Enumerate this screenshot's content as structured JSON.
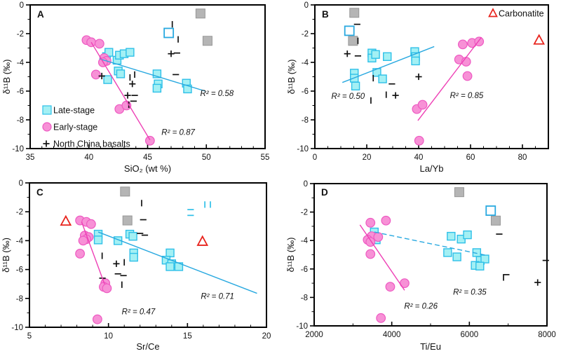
{
  "figure": {
    "background": "#ffffff"
  },
  "colors": {
    "late_stage_fill": "#a3f0f4",
    "late_stage_stroke": "#2fc0e8",
    "cyan_line": "#29a9e0",
    "early_stage_fill": "#f791d6",
    "early_stage_stroke": "#ee59c2",
    "magenta_line": "#ee3fb5",
    "black": "#111111",
    "gray_fill": "#b5b5b5",
    "gray_stroke": "#979797",
    "red": "#e8231c",
    "axis": "#000000"
  },
  "legend_a": {
    "items": [
      {
        "marker": "late-stage-square",
        "label": "Late-stage"
      },
      {
        "marker": "early-stage-circle",
        "label": "Early-stage"
      },
      {
        "marker": "plus",
        "label": "North China basalts"
      }
    ]
  },
  "legend_b": {
    "items": [
      {
        "marker": "carbonatite-triangle",
        "label": "Carbonatite"
      }
    ]
  },
  "chart_data": [
    {
      "panel_label": "A",
      "type": "scatter",
      "xlabel": "SiO₂ (wt %)",
      "ylabel": "δ¹¹B (‰)",
      "xlim": [
        35,
        55
      ],
      "xticks": [
        35,
        40,
        45,
        50,
        55
      ],
      "xtick_labels": [
        "35",
        "40",
        "45",
        "50",
        "55"
      ],
      "x_minor_step": 1,
      "ylim": [
        -10,
        0
      ],
      "yticks": [
        0,
        -2,
        -4,
        -6,
        -8,
        -10
      ],
      "ytick_labels": [
        "0",
        "-2",
        "-4",
        "-6",
        "-8",
        "-10"
      ],
      "y_minor_step": 1,
      "series": {
        "late_stage": [
          [
            41.5,
            -3.6
          ],
          [
            41.7,
            -3.3
          ],
          [
            42.4,
            -3.85
          ],
          [
            42.6,
            -3.5
          ],
          [
            43.0,
            -3.4
          ],
          [
            43.5,
            -3.3
          ],
          [
            42.5,
            -4.6
          ],
          [
            42.7,
            -4.8
          ],
          [
            41.6,
            -5.2
          ],
          [
            45.8,
            -4.8
          ],
          [
            45.9,
            -5.5
          ],
          [
            45.8,
            -5.8
          ],
          [
            48.3,
            -5.45
          ],
          [
            48.4,
            -5.85
          ]
        ],
        "late_stage_open": [
          [
            46.8,
            -1.95
          ]
        ],
        "early_stage": [
          [
            39.8,
            -2.45
          ],
          [
            40.2,
            -2.6
          ],
          [
            40.9,
            -2.7
          ],
          [
            41.3,
            -3.7
          ],
          [
            41.5,
            -3.9
          ],
          [
            41.2,
            -4.0
          ],
          [
            40.6,
            -4.85
          ],
          [
            42.6,
            -7.25
          ],
          [
            43.2,
            -7.0
          ],
          [
            45.2,
            -9.45
          ]
        ],
        "north_china_basalts": [
          [
            47.1,
            -1.35,
            "vbar"
          ],
          [
            47.6,
            -2.4,
            "vbar"
          ],
          [
            47.0,
            -3.4,
            "plus"
          ],
          [
            47.5,
            -3.35,
            "hbar"
          ],
          [
            41.1,
            -4.95,
            "plus"
          ],
          [
            43.5,
            -5.05,
            "vbar"
          ],
          [
            43.9,
            -4.85,
            "vbar"
          ],
          [
            43.7,
            -5.5,
            "plus"
          ],
          [
            43.3,
            -6.3,
            "plus"
          ],
          [
            43.9,
            -6.3,
            "hbar"
          ],
          [
            43.8,
            -6.7,
            "hbar"
          ],
          [
            43.4,
            -6.95,
            "vbar"
          ],
          [
            47.4,
            -4.85,
            "hbar"
          ]
        ],
        "gray_squares": [
          [
            49.5,
            -0.6
          ],
          [
            50.1,
            -2.5
          ]
        ],
        "carbonatite": []
      },
      "trendlines": [
        {
          "series": "late_stage",
          "color": "cyan",
          "x1": 40.9,
          "y1": -3.75,
          "x2": 49.9,
          "y2": -6.0,
          "dashed": false,
          "r2_label": "R² = 0.58",
          "label_x": 50.9,
          "label_y": -6.15
        },
        {
          "series": "early_stage",
          "color": "magenta",
          "x1": 40.2,
          "y1": -2.6,
          "x2": 45.2,
          "y2": -9.4,
          "dashed": false,
          "r2_label": "R² = 0.87",
          "label_x": 47.6,
          "label_y": -8.85
        }
      ]
    },
    {
      "panel_label": "B",
      "type": "scatter",
      "xlabel": "La/Yb",
      "ylabel": "δ¹¹B (‰)",
      "xlim": [
        0,
        90
      ],
      "xticks": [
        0,
        20,
        40,
        60,
        80
      ],
      "xtick_labels": [
        "0",
        "20",
        "40",
        "60",
        "80"
      ],
      "x_minor_step": 5,
      "ylim": [
        -10,
        0
      ],
      "yticks": [
        0,
        -2,
        -4,
        -6,
        -8,
        -10
      ],
      "ytick_labels": [
        "0",
        "-2",
        "-4",
        "-6",
        "-8",
        "-10"
      ],
      "y_minor_step": 1,
      "series": {
        "late_stage": [
          [
            22.0,
            -3.35
          ],
          [
            22.0,
            -3.7
          ],
          [
            23.4,
            -3.45
          ],
          [
            27.9,
            -3.6
          ],
          [
            15.2,
            -4.75
          ],
          [
            15.2,
            -5.1
          ],
          [
            15.7,
            -5.65
          ],
          [
            23.9,
            -4.7
          ],
          [
            26.1,
            -5.15
          ],
          [
            38.5,
            -3.25
          ],
          [
            38.8,
            -3.6
          ],
          [
            38.8,
            -3.9
          ]
        ],
        "late_stage_open": [
          [
            13.3,
            -1.8
          ]
        ],
        "early_stage": [
          [
            57.0,
            -2.75
          ],
          [
            60.6,
            -2.65
          ],
          [
            63.3,
            -2.55
          ],
          [
            55.6,
            -3.8
          ],
          [
            58.3,
            -3.95
          ],
          [
            58.8,
            -4.95
          ],
          [
            39.3,
            -7.25
          ],
          [
            41.5,
            -6.95
          ],
          [
            40.2,
            -9.45
          ]
        ],
        "north_china_basalts": [
          [
            16.3,
            -1.35,
            "hbar"
          ],
          [
            12.5,
            -3.4,
            "plus"
          ],
          [
            16.6,
            -2.5,
            "vbar"
          ],
          [
            16.6,
            -3.55,
            "hbar"
          ],
          [
            22.5,
            -5.1,
            "vbar"
          ],
          [
            29.7,
            -5.5,
            "hbar"
          ],
          [
            40.0,
            -5.0,
            "plus"
          ],
          [
            31.1,
            -6.3,
            "plus"
          ],
          [
            27.5,
            -6.25,
            "vbar"
          ],
          [
            21.6,
            -6.65,
            "vbar"
          ]
        ],
        "gray_squares": [
          [
            15.2,
            -0.55
          ],
          [
            14.7,
            -2.5
          ]
        ],
        "carbonatite": [
          [
            86.4,
            -2.45
          ]
        ]
      },
      "trendlines": [
        {
          "series": "late_stage",
          "color": "cyan",
          "x1": 10.6,
          "y1": -5.4,
          "x2": 46.0,
          "y2": -2.9,
          "dashed": false,
          "r2_label": "R² = 0.50",
          "label_x": 12.8,
          "label_y": -6.35
        },
        {
          "series": "early_stage",
          "color": "magenta",
          "x1": 39.7,
          "y1": -8.05,
          "x2": 64.2,
          "y2": -2.25,
          "dashed": false,
          "r2_label": "R² = 0.85",
          "label_x": 58.5,
          "label_y": -6.3
        }
      ]
    },
    {
      "panel_label": "C",
      "type": "scatter",
      "xlabel": "Sr/Ce",
      "ylabel": "δ¹¹B (‰)",
      "xlim": [
        5,
        20
      ],
      "xticks": [
        5,
        10,
        15,
        20
      ],
      "xtick_labels": [
        "5",
        "10",
        "15",
        "20"
      ],
      "x_minor_step": 1,
      "ylim": [
        -10,
        0
      ],
      "yticks": [
        0,
        -2,
        -4,
        -6,
        -8,
        -10
      ],
      "ytick_labels": [
        "0",
        "-2",
        "-4",
        "-6",
        "-8",
        "-10"
      ],
      "y_minor_step": 1,
      "series": {
        "late_stage": [
          [
            9.35,
            -3.55
          ],
          [
            9.35,
            -3.95
          ],
          [
            10.6,
            -4.0
          ],
          [
            11.35,
            -3.55
          ],
          [
            11.55,
            -3.7
          ],
          [
            11.6,
            -4.85
          ],
          [
            11.6,
            -5.15
          ],
          [
            13.9,
            -4.85
          ],
          [
            13.65,
            -5.35
          ],
          [
            14.0,
            -5.6
          ],
          [
            13.9,
            -5.8
          ],
          [
            14.45,
            -5.8
          ]
        ],
        "late_stage_open": [],
        "late_stage_ticks": [
          [
            15.2,
            -1.85,
            "hbar"
          ],
          [
            15.2,
            -2.25,
            "hbar"
          ],
          [
            16.1,
            -1.5,
            "vbar"
          ],
          [
            16.45,
            -1.5,
            "vbar"
          ]
        ],
        "early_stage": [
          [
            8.2,
            -2.6
          ],
          [
            8.6,
            -2.7
          ],
          [
            8.9,
            -2.85
          ],
          [
            8.5,
            -3.65
          ],
          [
            8.75,
            -3.75
          ],
          [
            8.6,
            -3.9
          ],
          [
            8.4,
            -4.0
          ],
          [
            8.2,
            -4.9
          ],
          [
            9.8,
            -6.95
          ],
          [
            9.7,
            -7.2
          ],
          [
            9.9,
            -7.3
          ],
          [
            9.3,
            -9.45
          ]
        ],
        "north_china_basalts": [
          [
            12.1,
            -1.4,
            "vbar"
          ],
          [
            12.2,
            -2.55,
            "hbar"
          ],
          [
            12.0,
            -3.5,
            "hbar"
          ],
          [
            12.3,
            -3.62,
            "hbar"
          ],
          [
            9.6,
            -5.05,
            "vbar"
          ],
          [
            10.5,
            -5.6,
            "plus"
          ],
          [
            11.0,
            -5.5,
            "vbar"
          ],
          [
            10.6,
            -6.3,
            "hbar"
          ],
          [
            10.95,
            -6.42,
            "hbar"
          ],
          [
            10.85,
            -7.05,
            "vbar"
          ],
          [
            9.62,
            -6.6,
            "hbar"
          ]
        ],
        "gray_squares": [
          [
            11.05,
            -0.6
          ],
          [
            11.2,
            -2.6
          ]
        ],
        "carbonatite": [
          [
            7.3,
            -2.65
          ],
          [
            15.95,
            -4.05
          ]
        ]
      },
      "trendlines": [
        {
          "series": "early_stage",
          "color": "magenta",
          "x1": 8.3,
          "y1": -2.7,
          "x2": 9.75,
          "y2": -7.0,
          "dashed": false,
          "r2_label": "R² = 0.47",
          "label_x": 11.9,
          "label_y": -8.9
        },
        {
          "series": "late_stage",
          "color": "cyan",
          "x1": 9.35,
          "y1": -3.4,
          "x2": 19.4,
          "y2": -7.65,
          "dashed": false,
          "r2_label": "R² = 0.71",
          "label_x": 16.9,
          "label_y": -7.85
        }
      ]
    },
    {
      "panel_label": "D",
      "type": "scatter",
      "xlabel": "Ti/Eu",
      "ylabel": "δ¹¹B (‰)",
      "xlim": [
        2000,
        8000
      ],
      "xticks": [
        2000,
        4000,
        6000,
        8000
      ],
      "xtick_labels": [
        "2000",
        "4000",
        "6000",
        "8000"
      ],
      "x_minor_step": 1000,
      "ylim": [
        -10,
        0
      ],
      "yticks": [
        0,
        -2,
        -4,
        -6,
        -8,
        -10
      ],
      "ytick_labels": [
        "0",
        "-2",
        "-4",
        "-6",
        "-8",
        "-10"
      ],
      "y_minor_step": 1,
      "series": {
        "late_stage": [
          [
            3550,
            -3.4
          ],
          [
            3600,
            -3.95
          ],
          [
            5530,
            -3.7
          ],
          [
            5790,
            -3.9
          ],
          [
            5950,
            -3.6
          ],
          [
            5440,
            -4.85
          ],
          [
            5680,
            -5.15
          ],
          [
            6190,
            -4.85
          ],
          [
            6280,
            -5.4
          ],
          [
            6400,
            -5.3
          ],
          [
            6150,
            -5.75
          ],
          [
            6270,
            -5.8
          ]
        ],
        "late_stage_open": [
          [
            6550,
            -1.9
          ]
        ],
        "early_stage": [
          [
            3450,
            -2.75
          ],
          [
            3850,
            -2.6
          ],
          [
            3480,
            -3.7
          ],
          [
            3650,
            -3.75
          ],
          [
            3380,
            -3.95
          ],
          [
            3450,
            -4.1
          ],
          [
            3450,
            -4.95
          ],
          [
            3960,
            -7.25
          ],
          [
            4330,
            -7.0
          ],
          [
            3720,
            -9.45
          ]
        ],
        "north_china_basalts": [
          [
            6770,
            -3.55,
            "hbar"
          ],
          [
            7970,
            -5.4,
            "hbar"
          ],
          [
            6950,
            -6.4,
            "hbar"
          ],
          [
            6880,
            -6.6,
            "vbar"
          ],
          [
            7760,
            -6.95,
            "plus"
          ]
        ],
        "gray_squares": [
          [
            5740,
            -0.6
          ],
          [
            6680,
            -2.6
          ]
        ],
        "carbonatite": []
      },
      "trendlines": [
        {
          "series": "early_stage",
          "color": "magenta",
          "x1": 3180,
          "y1": -2.9,
          "x2": 4330,
          "y2": -7.5,
          "dashed": false,
          "r2_label": "R² = 0.26",
          "label_x": 4750,
          "label_y": -8.6
        },
        {
          "series": "late_stage",
          "color": "cyan",
          "x1": 3550,
          "y1": -3.4,
          "x2": 6450,
          "y2": -5.05,
          "dashed": true,
          "r2_label": "R² = 0.35",
          "label_x": 6010,
          "label_y": -7.6
        }
      ]
    }
  ]
}
